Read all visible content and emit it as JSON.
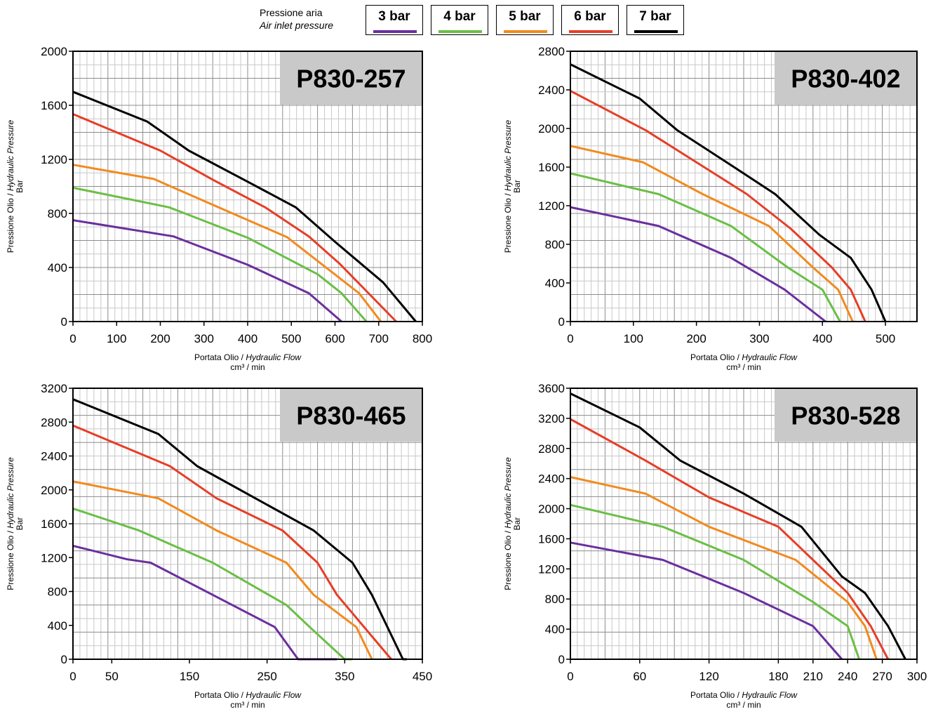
{
  "legend": {
    "title_it": "Pressione aria",
    "title_en": "Air inlet pressure",
    "items": [
      {
        "label": "3 bar",
        "color": "#6a2f9e"
      },
      {
        "label": "4 bar",
        "color": "#6abf45"
      },
      {
        "label": "5 bar",
        "color": "#f28a1e"
      },
      {
        "label": "6 bar",
        "color": "#e63e27"
      },
      {
        "label": "7 bar",
        "color": "#000000"
      }
    ]
  },
  "chart_data": [
    {
      "type": "line",
      "title": "P830-257",
      "xlabel_it": "Portata Olio / ",
      "xlabel_en": "Hydraulic Flow",
      "xunit": "cm³ / min",
      "ylabel_it": "Pressione Olio / ",
      "ylabel_en": "Hydraulic Pressure",
      "yunit": "Bar",
      "xlim": [
        0,
        800
      ],
      "ylim": [
        0,
        2000
      ],
      "xticks": [
        0,
        100,
        200,
        300,
        400,
        500,
        600,
        700,
        800
      ],
      "yticks": [
        0,
        400,
        800,
        1200,
        1600,
        2000
      ],
      "grid": true,
      "series": [
        {
          "name": "3 bar",
          "color": "#6a2f9e",
          "points": [
            [
              0,
              750
            ],
            [
              230,
              630
            ],
            [
              400,
              420
            ],
            [
              540,
              210
            ],
            [
              615,
              0
            ]
          ]
        },
        {
          "name": "4 bar",
          "color": "#6abf45",
          "points": [
            [
              0,
              990
            ],
            [
              220,
              845
            ],
            [
              400,
              620
            ],
            [
              560,
              350
            ],
            [
              615,
              210
            ],
            [
              672,
              0
            ]
          ]
        },
        {
          "name": "5 bar",
          "color": "#f28a1e",
          "points": [
            [
              0,
              1160
            ],
            [
              185,
              1055
            ],
            [
              330,
              850
            ],
            [
              490,
              625
            ],
            [
              655,
              210
            ],
            [
              705,
              0
            ]
          ]
        },
        {
          "name": "6 bar",
          "color": "#e63e27",
          "points": [
            [
              0,
              1535
            ],
            [
              200,
              1265
            ],
            [
              320,
              1050
            ],
            [
              440,
              845
            ],
            [
              540,
              630
            ],
            [
              610,
              430
            ],
            [
              740,
              0
            ]
          ]
        },
        {
          "name": "7 bar",
          "color": "#000000",
          "points": [
            [
              0,
              1700
            ],
            [
              170,
              1480
            ],
            [
              265,
              1265
            ],
            [
              400,
              1035
            ],
            [
              510,
              845
            ],
            [
              600,
              590
            ],
            [
              710,
              290
            ],
            [
              785,
              0
            ]
          ]
        }
      ]
    },
    {
      "type": "line",
      "title": "P830-402",
      "xlabel_it": "Portata Olio / ",
      "xlabel_en": "Hydraulic Flow",
      "xunit": "cm³ / min",
      "ylabel_it": "Pressione Olio / ",
      "ylabel_en": "Hydraulic Pressure",
      "yunit": "Bar",
      "xlim": [
        0,
        550
      ],
      "ylim": [
        0,
        2800
      ],
      "xticks": [
        0,
        100,
        200,
        300,
        400,
        500
      ],
      "yticks": [
        0,
        400,
        800,
        1200,
        1600,
        2000,
        2400,
        2800
      ],
      "grid": true,
      "series": [
        {
          "name": "3 bar",
          "color": "#6a2f9e",
          "points": [
            [
              0,
              1185
            ],
            [
              140,
              990
            ],
            [
              255,
              660
            ],
            [
              340,
              330
            ],
            [
              405,
              0
            ]
          ]
        },
        {
          "name": "4 bar",
          "color": "#6abf45",
          "points": [
            [
              0,
              1535
            ],
            [
              140,
              1320
            ],
            [
              255,
              990
            ],
            [
              345,
              560
            ],
            [
              400,
              330
            ],
            [
              428,
              0
            ]
          ]
        },
        {
          "name": "5 bar",
          "color": "#f28a1e",
          "points": [
            [
              0,
              1820
            ],
            [
              115,
              1650
            ],
            [
              210,
              1320
            ],
            [
              315,
              990
            ],
            [
              385,
              560
            ],
            [
              425,
              330
            ],
            [
              448,
              0
            ]
          ]
        },
        {
          "name": "6 bar",
          "color": "#e63e27",
          "points": [
            [
              0,
              2390
            ],
            [
              120,
              1980
            ],
            [
              200,
              1650
            ],
            [
              280,
              1320
            ],
            [
              350,
              960
            ],
            [
              415,
              560
            ],
            [
              445,
              330
            ],
            [
              468,
              0
            ]
          ]
        },
        {
          "name": "7 bar",
          "color": "#000000",
          "points": [
            [
              0,
              2665
            ],
            [
              110,
              2310
            ],
            [
              170,
              1980
            ],
            [
              255,
              1620
            ],
            [
              325,
              1320
            ],
            [
              395,
              900
            ],
            [
              445,
              660
            ],
            [
              478,
              330
            ],
            [
              500,
              0
            ]
          ]
        }
      ]
    },
    {
      "type": "line",
      "title": "P830-465",
      "xlabel_it": "Portata Olio / ",
      "xlabel_en": "Hydraulic Flow",
      "xunit": "cm³ / min",
      "ylabel_it": "Pressione Olio / ",
      "ylabel_en": "Hydraulic Pressure",
      "yunit": "Bar",
      "xlim": [
        0,
        450
      ],
      "ylim": [
        0,
        3200
      ],
      "xticks": [
        0,
        50,
        150,
        250,
        350,
        450
      ],
      "yticks": [
        0,
        400,
        800,
        1200,
        1600,
        2000,
        2400,
        2800,
        3200
      ],
      "grid": true,
      "series": [
        {
          "name": "3 bar",
          "color": "#6a2f9e",
          "points": [
            [
              0,
              1340
            ],
            [
              70,
              1180
            ],
            [
              100,
              1140
            ],
            [
              180,
              760
            ],
            [
              260,
              380
            ],
            [
              290,
              0
            ],
            [
              340,
              0
            ]
          ]
        },
        {
          "name": "4 bar",
          "color": "#6abf45",
          "points": [
            [
              0,
              1780
            ],
            [
              85,
              1520
            ],
            [
              180,
              1140
            ],
            [
              275,
              640
            ],
            [
              305,
              380
            ],
            [
              350,
              0
            ],
            [
              360,
              0
            ]
          ]
        },
        {
          "name": "5 bar",
          "color": "#f28a1e",
          "points": [
            [
              0,
              2100
            ],
            [
              110,
              1900
            ],
            [
              185,
              1520
            ],
            [
              275,
              1140
            ],
            [
              310,
              760
            ],
            [
              365,
              380
            ],
            [
              385,
              0
            ]
          ]
        },
        {
          "name": "6 bar",
          "color": "#e63e27",
          "points": [
            [
              0,
              2760
            ],
            [
              125,
              2280
            ],
            [
              185,
              1900
            ],
            [
              270,
              1520
            ],
            [
              315,
              1140
            ],
            [
              340,
              760
            ],
            [
              375,
              380
            ],
            [
              410,
              0
            ]
          ]
        },
        {
          "name": "7 bar",
          "color": "#000000",
          "points": [
            [
              0,
              3070
            ],
            [
              110,
              2660
            ],
            [
              160,
              2280
            ],
            [
              310,
              1520
            ],
            [
              360,
              1140
            ],
            [
              385,
              760
            ],
            [
              425,
              0
            ],
            [
              430,
              0
            ]
          ]
        }
      ]
    },
    {
      "type": "line",
      "title": "P830-528",
      "xlabel_it": "Portata Olio / ",
      "xlabel_en": "Hydraulic Flow",
      "xunit": "cm³ / min",
      "ylabel_it": "Pressione Olio / ",
      "ylabel_en": "Hydraulic Pressure",
      "yunit": "Bar",
      "xlim": [
        0,
        300
      ],
      "ylim": [
        0,
        3600
      ],
      "xticks": [
        0,
        60,
        120,
        180,
        210,
        240,
        270,
        300
      ],
      "yticks": [
        0,
        400,
        800,
        1200,
        1600,
        2000,
        2400,
        2800,
        3200,
        3600
      ],
      "grid": true,
      "series": [
        {
          "name": "3 bar",
          "color": "#6a2f9e",
          "points": [
            [
              0,
              1550
            ],
            [
              80,
              1320
            ],
            [
              150,
              880
            ],
            [
              210,
              440
            ],
            [
              235,
              0
            ]
          ]
        },
        {
          "name": "4 bar",
          "color": "#6abf45",
          "points": [
            [
              0,
              2050
            ],
            [
              80,
              1760
            ],
            [
              150,
              1320
            ],
            [
              210,
              760
            ],
            [
              240,
              440
            ],
            [
              250,
              0
            ]
          ]
        },
        {
          "name": "5 bar",
          "color": "#f28a1e",
          "points": [
            [
              0,
              2420
            ],
            [
              65,
              2200
            ],
            [
              120,
              1760
            ],
            [
              195,
              1320
            ],
            [
              240,
              760
            ],
            [
              255,
              440
            ],
            [
              265,
              0
            ]
          ]
        },
        {
          "name": "6 bar",
          "color": "#e63e27",
          "points": [
            [
              0,
              3190
            ],
            [
              65,
              2640
            ],
            [
              120,
              2150
            ],
            [
              180,
              1760
            ],
            [
              210,
              1320
            ],
            [
              240,
              880
            ],
            [
              260,
              440
            ],
            [
              275,
              0
            ]
          ]
        },
        {
          "name": "7 bar",
          "color": "#000000",
          "points": [
            [
              0,
              3530
            ],
            [
              60,
              3080
            ],
            [
              95,
              2640
            ],
            [
              150,
              2200
            ],
            [
              200,
              1760
            ],
            [
              235,
              1100
            ],
            [
              255,
              880
            ],
            [
              275,
              440
            ],
            [
              290,
              0
            ]
          ]
        }
      ]
    }
  ]
}
